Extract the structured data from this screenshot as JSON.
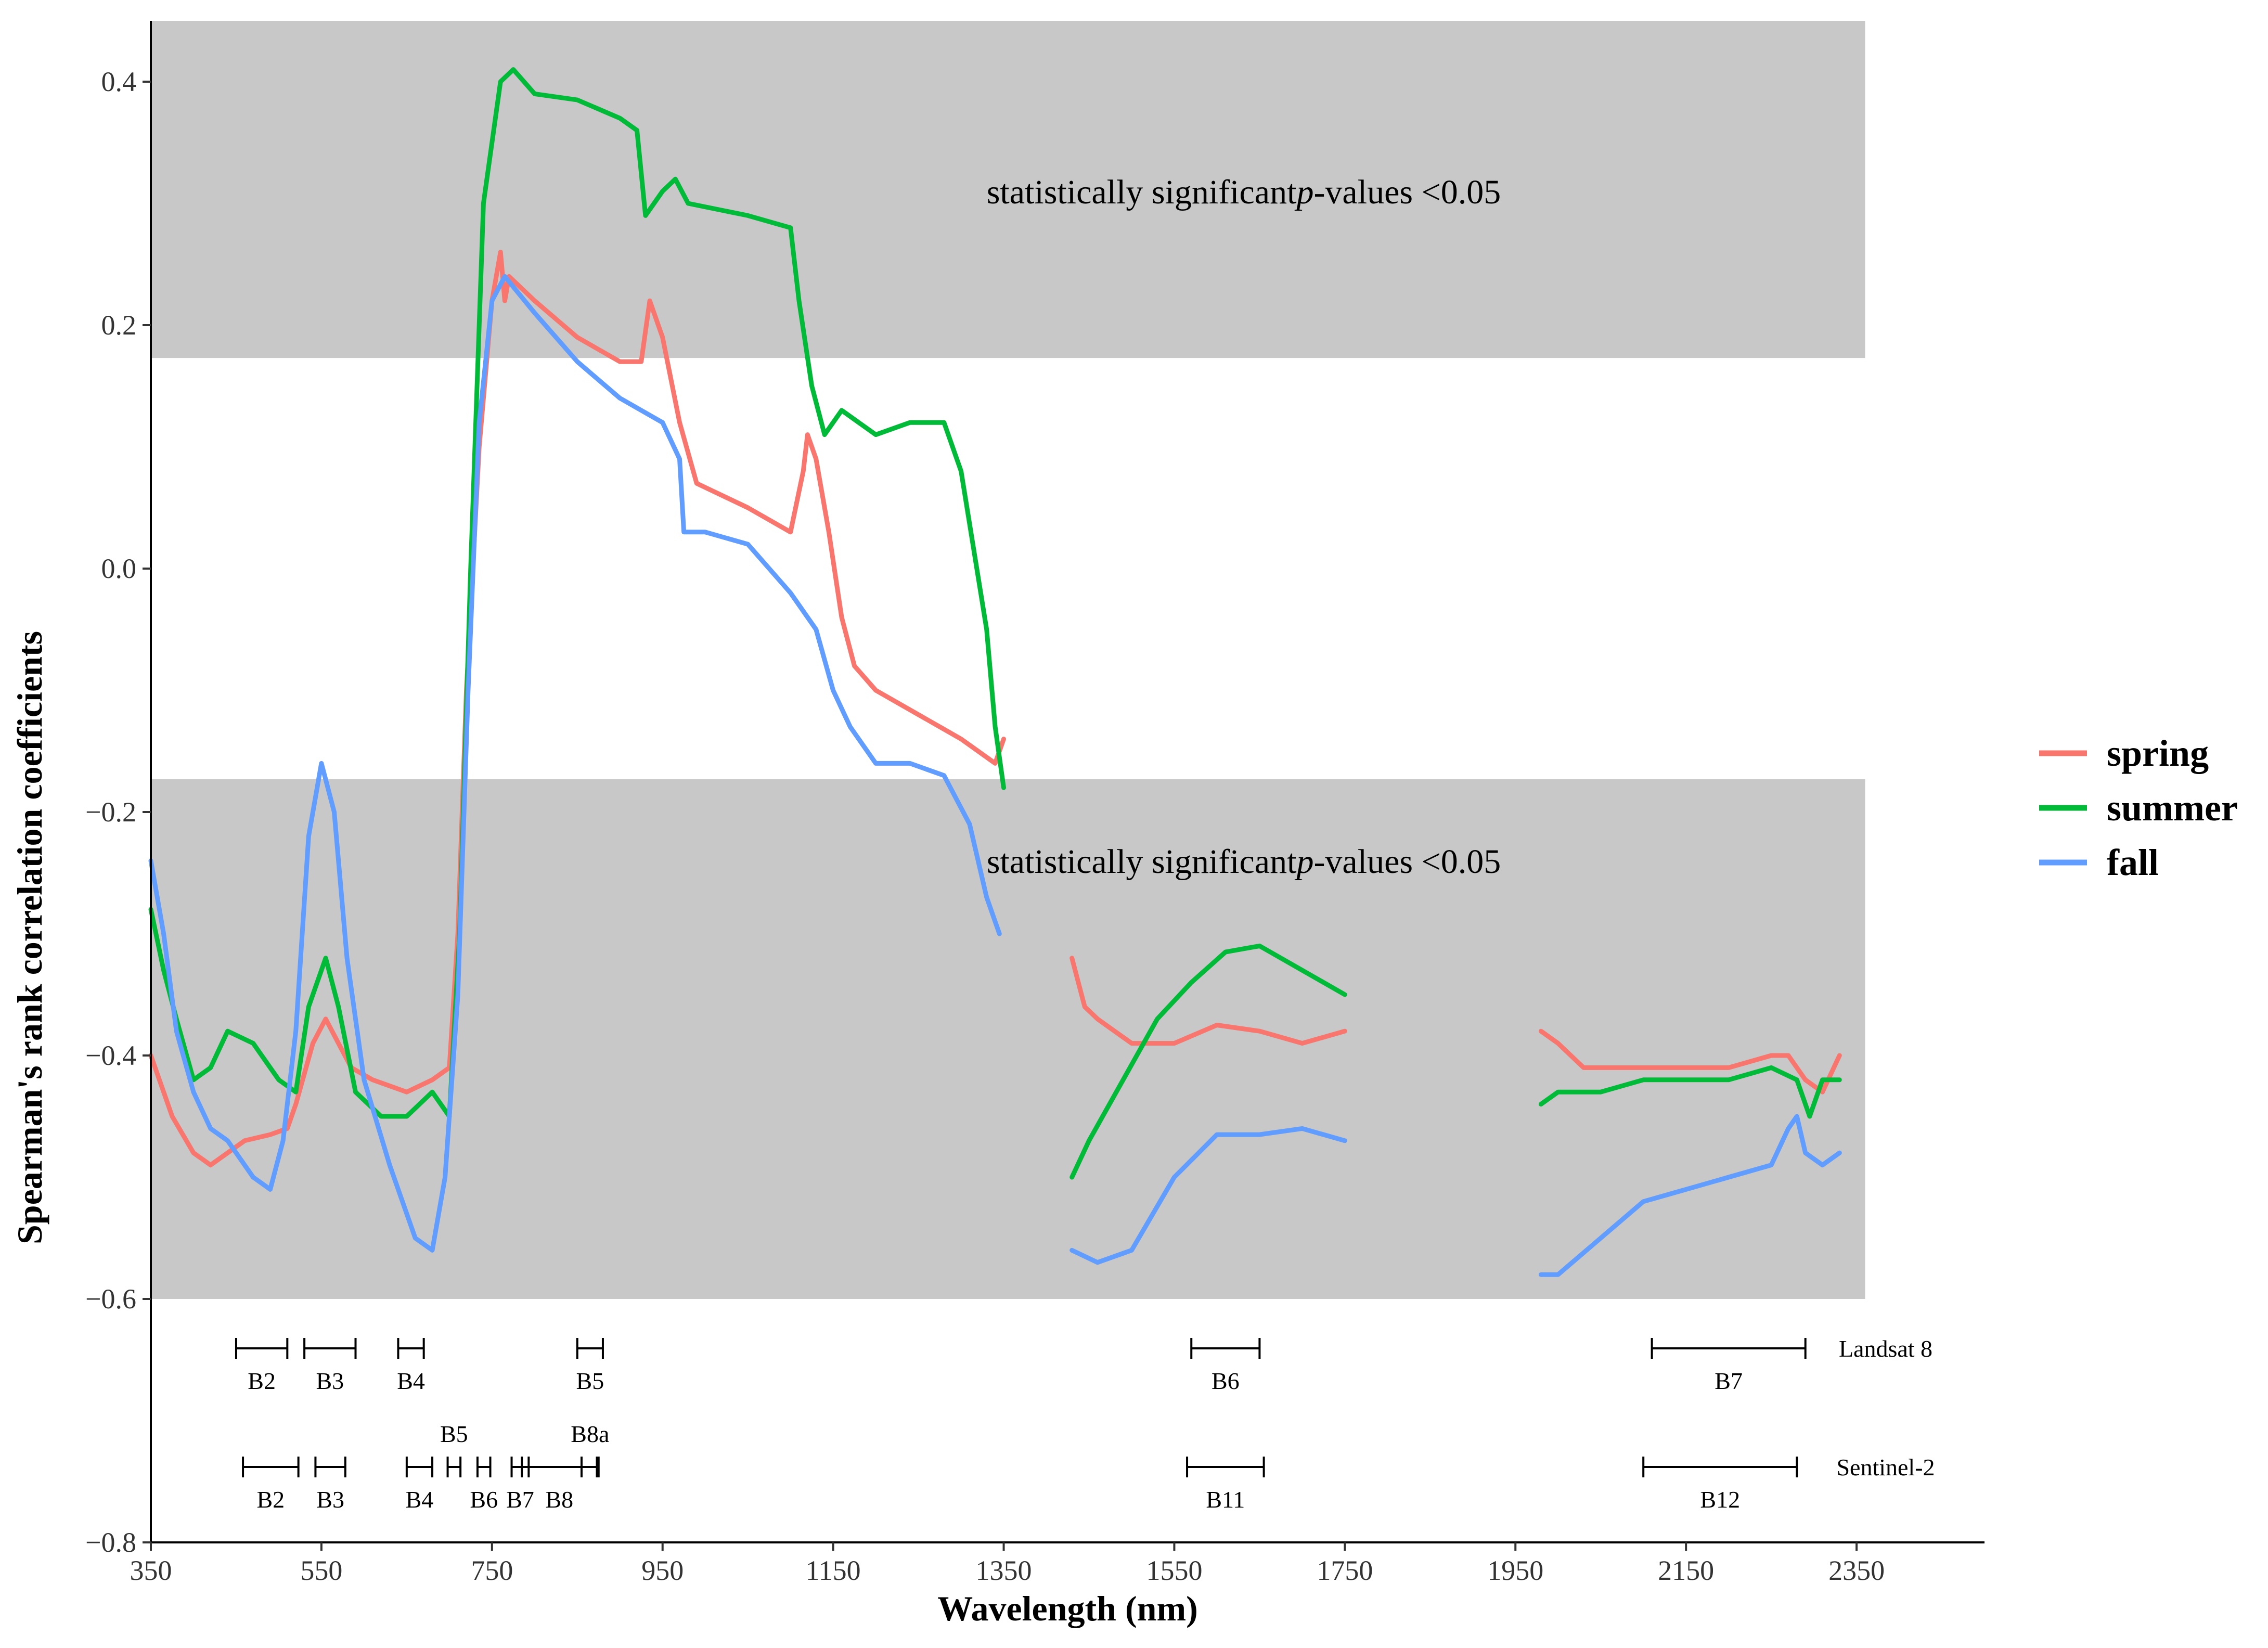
{
  "chart_data": {
    "type": "line",
    "title": "",
    "xlabel": "Wavelength (nm)",
    "ylabel": "Spearman's rank correlation coefficients",
    "xlim": [
      350,
      2500
    ],
    "ylim": [
      -0.8,
      0.45
    ],
    "x_ticks": [
      350,
      550,
      750,
      950,
      1150,
      1350,
      1550,
      1750,
      1950,
      2150,
      2350
    ],
    "y_ticks": [
      -0.8,
      -0.6,
      -0.4,
      -0.2,
      0.0,
      0.2,
      0.4
    ],
    "y_tick_labels": [
      "−0.8",
      "−0.6",
      "−0.4",
      "−0.2",
      "0.0",
      "0.2",
      "0.4"
    ],
    "significance_regions": [
      {
        "y_from": 0.173,
        "y_to": 0.45,
        "x_from": 350,
        "x_to": 2360,
        "label_prefix": "statistically significant",
        "label_p": "p",
        "label_suffix": "-values <0.05",
        "label_x": 1330,
        "label_y": 0.3
      },
      {
        "y_from": -0.6,
        "y_to": -0.173,
        "x_from": 350,
        "x_to": 2360,
        "label_prefix": "statistically significant",
        "label_p": "p",
        "label_suffix": "-values <0.05",
        "label_x": 1330,
        "label_y": -0.25
      }
    ],
    "series": [
      {
        "name": "spring",
        "color": "#F8766D",
        "segments": [
          [
            [
              350,
              -0.4
            ],
            [
              360,
              -0.42
            ],
            [
              375,
              -0.45
            ],
            [
              400,
              -0.48
            ],
            [
              420,
              -0.49
            ],
            [
              440,
              -0.48
            ],
            [
              460,
              -0.47
            ],
            [
              490,
              -0.465
            ],
            [
              510,
              -0.46
            ],
            [
              520,
              -0.44
            ],
            [
              540,
              -0.39
            ],
            [
              555,
              -0.37
            ],
            [
              570,
              -0.39
            ],
            [
              585,
              -0.41
            ],
            [
              610,
              -0.42
            ],
            [
              650,
              -0.43
            ],
            [
              680,
              -0.42
            ],
            [
              700,
              -0.41
            ],
            [
              710,
              -0.3
            ],
            [
              720,
              -0.1
            ],
            [
              735,
              0.1
            ],
            [
              750,
              0.22
            ],
            [
              760,
              0.26
            ],
            [
              765,
              0.22
            ],
            [
              770,
              0.24
            ],
            [
              800,
              0.22
            ],
            [
              850,
              0.19
            ],
            [
              900,
              0.17
            ],
            [
              925,
              0.17
            ],
            [
              935,
              0.22
            ],
            [
              950,
              0.19
            ],
            [
              970,
              0.12
            ],
            [
              990,
              0.07
            ],
            [
              1050,
              0.05
            ],
            [
              1100,
              0.03
            ],
            [
              1115,
              0.08
            ],
            [
              1120,
              0.11
            ],
            [
              1130,
              0.09
            ],
            [
              1145,
              0.03
            ],
            [
              1160,
              -0.04
            ],
            [
              1175,
              -0.08
            ],
            [
              1200,
              -0.1
            ],
            [
              1250,
              -0.12
            ],
            [
              1300,
              -0.14
            ],
            [
              1340,
              -0.16
            ],
            [
              1350,
              -0.14
            ]
          ],
          [
            [
              1430,
              -0.32
            ],
            [
              1445,
              -0.36
            ],
            [
              1460,
              -0.37
            ],
            [
              1500,
              -0.39
            ],
            [
              1550,
              -0.39
            ],
            [
              1600,
              -0.375
            ],
            [
              1650,
              -0.38
            ],
            [
              1700,
              -0.39
            ],
            [
              1750,
              -0.38
            ]
          ],
          [
            [
              1980,
              -0.38
            ],
            [
              2000,
              -0.39
            ],
            [
              2030,
              -0.41
            ],
            [
              2100,
              -0.41
            ],
            [
              2200,
              -0.41
            ],
            [
              2250,
              -0.4
            ],
            [
              2270,
              -0.4
            ],
            [
              2290,
              -0.42
            ],
            [
              2310,
              -0.43
            ],
            [
              2330,
              -0.4
            ]
          ]
        ]
      },
      {
        "name": "summer",
        "color": "#00BA38",
        "segments": [
          [
            [
              350,
              -0.28
            ],
            [
              365,
              -0.33
            ],
            [
              380,
              -0.37
            ],
            [
              400,
              -0.42
            ],
            [
              420,
              -0.41
            ],
            [
              440,
              -0.38
            ],
            [
              470,
              -0.39
            ],
            [
              500,
              -0.42
            ],
            [
              520,
              -0.43
            ],
            [
              535,
              -0.36
            ],
            [
              555,
              -0.32
            ],
            [
              570,
              -0.36
            ],
            [
              590,
              -0.43
            ],
            [
              620,
              -0.45
            ],
            [
              650,
              -0.45
            ],
            [
              680,
              -0.43
            ],
            [
              700,
              -0.45
            ],
            [
              712,
              -0.3
            ],
            [
              725,
              0.0
            ],
            [
              740,
              0.3
            ],
            [
              760,
              0.4
            ],
            [
              775,
              0.41
            ],
            [
              800,
              0.39
            ],
            [
              850,
              0.385
            ],
            [
              900,
              0.37
            ],
            [
              920,
              0.36
            ],
            [
              930,
              0.29
            ],
            [
              940,
              0.3
            ],
            [
              950,
              0.31
            ],
            [
              965,
              0.32
            ],
            [
              980,
              0.3
            ],
            [
              1050,
              0.29
            ],
            [
              1100,
              0.28
            ],
            [
              1110,
              0.22
            ],
            [
              1125,
              0.15
            ],
            [
              1140,
              0.11
            ],
            [
              1160,
              0.13
            ],
            [
              1200,
              0.11
            ],
            [
              1240,
              0.12
            ],
            [
              1280,
              0.12
            ],
            [
              1300,
              0.08
            ],
            [
              1330,
              -0.05
            ],
            [
              1340,
              -0.13
            ],
            [
              1350,
              -0.18
            ]
          ],
          [
            [
              1430,
              -0.5
            ],
            [
              1450,
              -0.47
            ],
            [
              1490,
              -0.42
            ],
            [
              1530,
              -0.37
            ],
            [
              1570,
              -0.34
            ],
            [
              1610,
              -0.315
            ],
            [
              1650,
              -0.31
            ],
            [
              1700,
              -0.33
            ],
            [
              1750,
              -0.35
            ]
          ],
          [
            [
              1980,
              -0.44
            ],
            [
              2000,
              -0.43
            ],
            [
              2050,
              -0.43
            ],
            [
              2100,
              -0.42
            ],
            [
              2150,
              -0.42
            ],
            [
              2200,
              -0.42
            ],
            [
              2250,
              -0.41
            ],
            [
              2280,
              -0.42
            ],
            [
              2295,
              -0.45
            ],
            [
              2310,
              -0.42
            ],
            [
              2330,
              -0.42
            ]
          ]
        ]
      },
      {
        "name": "fall",
        "color": "#619CFF",
        "segments": [
          [
            [
              350,
              -0.24
            ],
            [
              365,
              -0.3
            ],
            [
              380,
              -0.38
            ],
            [
              400,
              -0.43
            ],
            [
              420,
              -0.46
            ],
            [
              440,
              -0.47
            ],
            [
              470,
              -0.5
            ],
            [
              490,
              -0.51
            ],
            [
              505,
              -0.47
            ],
            [
              520,
              -0.38
            ],
            [
              535,
              -0.22
            ],
            [
              550,
              -0.16
            ],
            [
              565,
              -0.2
            ],
            [
              580,
              -0.32
            ],
            [
              600,
              -0.42
            ],
            [
              630,
              -0.49
            ],
            [
              660,
              -0.55
            ],
            [
              680,
              -0.56
            ],
            [
              695,
              -0.5
            ],
            [
              710,
              -0.35
            ],
            [
              722,
              -0.1
            ],
            [
              735,
              0.12
            ],
            [
              750,
              0.22
            ],
            [
              765,
              0.24
            ],
            [
              800,
              0.21
            ],
            [
              850,
              0.17
            ],
            [
              900,
              0.14
            ],
            [
              950,
              0.12
            ],
            [
              970,
              0.09
            ],
            [
              975,
              0.03
            ],
            [
              1000,
              0.03
            ],
            [
              1050,
              0.02
            ],
            [
              1100,
              -0.02
            ],
            [
              1130,
              -0.05
            ],
            [
              1150,
              -0.1
            ],
            [
              1170,
              -0.13
            ],
            [
              1200,
              -0.16
            ],
            [
              1240,
              -0.16
            ],
            [
              1280,
              -0.17
            ],
            [
              1310,
              -0.21
            ],
            [
              1330,
              -0.27
            ],
            [
              1345,
              -0.3
            ]
          ],
          [
            [
              1430,
              -0.56
            ],
            [
              1460,
              -0.57
            ],
            [
              1500,
              -0.56
            ],
            [
              1550,
              -0.5
            ],
            [
              1600,
              -0.465
            ],
            [
              1650,
              -0.465
            ],
            [
              1700,
              -0.46
            ],
            [
              1750,
              -0.47
            ]
          ],
          [
            [
              1980,
              -0.58
            ],
            [
              2000,
              -0.58
            ],
            [
              2050,
              -0.55
            ],
            [
              2100,
              -0.52
            ],
            [
              2150,
              -0.51
            ],
            [
              2200,
              -0.5
            ],
            [
              2250,
              -0.49
            ],
            [
              2270,
              -0.46
            ],
            [
              2280,
              -0.45
            ],
            [
              2290,
              -0.48
            ],
            [
              2310,
              -0.49
            ],
            [
              2330,
              -0.48
            ]
          ]
        ]
      }
    ],
    "legend": {
      "position": "right",
      "entries": [
        "spring",
        "summer",
        "fall"
      ]
    },
    "sensor_bands": [
      {
        "sensor": "Landsat 8",
        "bands": [
          {
            "name": "B2",
            "from": 450,
            "to": 510,
            "label_pos": "below"
          },
          {
            "name": "B3",
            "from": 530,
            "to": 590,
            "label_pos": "below"
          },
          {
            "name": "B4",
            "from": 640,
            "to": 670,
            "label_pos": "below"
          },
          {
            "name": "B5",
            "from": 850,
            "to": 880,
            "label_pos": "below"
          },
          {
            "name": "B6",
            "from": 1570,
            "to": 1650,
            "label_pos": "below"
          },
          {
            "name": "B7",
            "from": 2110,
            "to": 2290,
            "label_pos": "below"
          }
        ]
      },
      {
        "sensor": "Sentinel-2",
        "bands": [
          {
            "name": "B2",
            "from": 458,
            "to": 523,
            "label_pos": "below"
          },
          {
            "name": "B3",
            "from": 543,
            "to": 578,
            "label_pos": "below"
          },
          {
            "name": "B4",
            "from": 650,
            "to": 680,
            "label_pos": "below"
          },
          {
            "name": "B5",
            "from": 698,
            "to": 713,
            "label_pos": "above"
          },
          {
            "name": "B6",
            "from": 733,
            "to": 748,
            "label_pos": "below"
          },
          {
            "name": "B7",
            "from": 773,
            "to": 793,
            "label_pos": "below"
          },
          {
            "name": "B8",
            "from": 785,
            "to": 873,
            "label_pos": "below"
          },
          {
            "name": "B8a",
            "from": 855,
            "to": 875,
            "label_pos": "above"
          },
          {
            "name": "B11",
            "from": 1565,
            "to": 1655,
            "label_pos": "below"
          },
          {
            "name": "B12",
            "from": 2100,
            "to": 2280,
            "label_pos": "below"
          }
        ]
      }
    ]
  }
}
